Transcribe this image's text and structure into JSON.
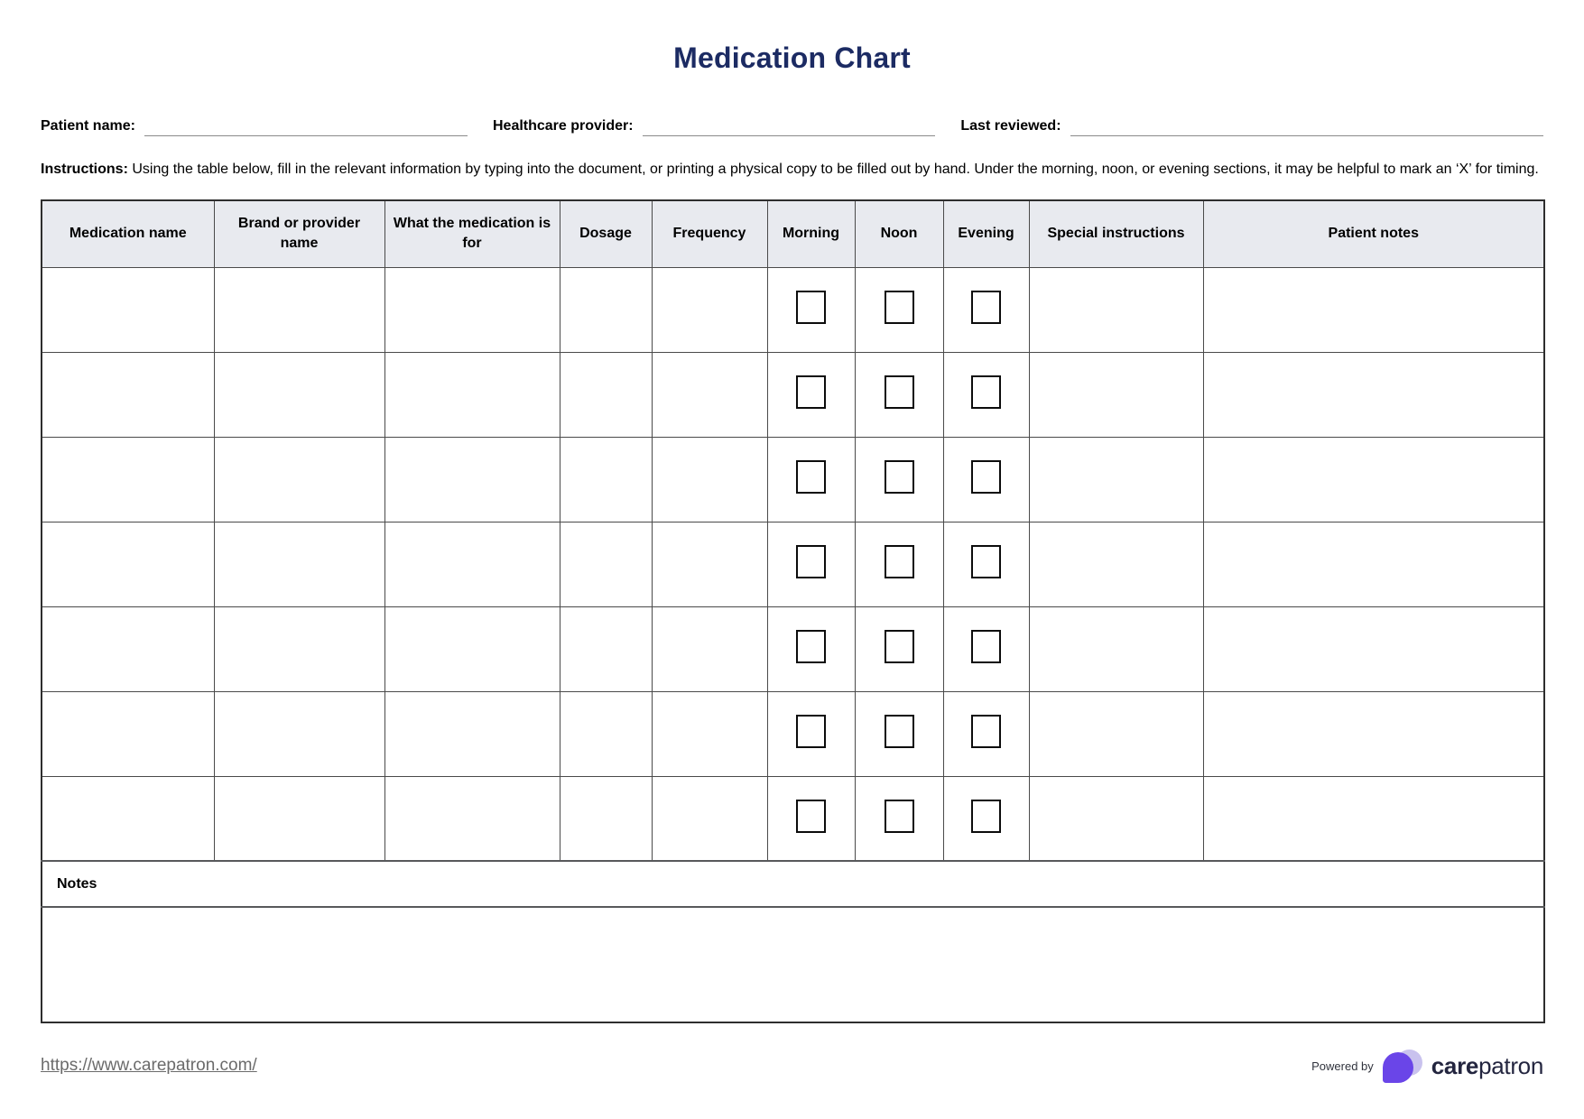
{
  "title": "Medication Chart",
  "fields": {
    "patient_name_label": "Patient name:",
    "healthcare_provider_label": "Healthcare provider:",
    "last_reviewed_label": "Last reviewed:",
    "patient_name_value": "",
    "healthcare_provider_value": "",
    "last_reviewed_value": ""
  },
  "instructions": {
    "label": "Instructions:",
    "text": " Using the table below, fill in the relevant information by typing into the document, or printing a physical copy to be filled out by hand. Under the morning, noon, or evening sections, it may be helpful to mark an ‘X’ for timing."
  },
  "table": {
    "columns": [
      "Medication name",
      "Brand or provider name",
      "What the medication is for",
      "Dosage",
      "Frequency",
      "Morning",
      "Noon",
      "Evening",
      "Special instructions",
      "Patient notes"
    ],
    "row_count": 7,
    "checkbox_columns": [
      "Morning",
      "Noon",
      "Evening"
    ],
    "checkboxes_checked": false,
    "notes_label": "Notes",
    "notes_value": ""
  },
  "footer": {
    "link": "https://www.carepatron.com/",
    "powered_by_label": "Powered by",
    "brand_bold": "care",
    "brand_regular": "patron"
  },
  "colors": {
    "title": "#1c2b63",
    "header_bg": "#e8eaef",
    "logo_purple": "#6a45e8",
    "logo_lavender": "#c9c2ee",
    "brand_navy": "#23253f",
    "link_gray": "#6b6b6b"
  }
}
